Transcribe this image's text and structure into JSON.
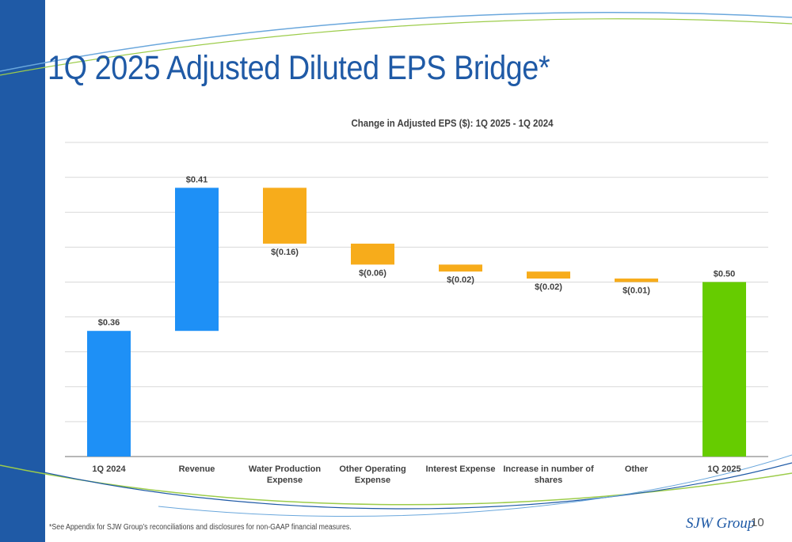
{
  "slide": {
    "title": "1Q 2025 Adjusted Diluted EPS Bridge*",
    "footnote": "*See Appendix for SJW Group’s reconciliations and disclosures for non-GAAP financial measures.",
    "logo_text": "SJW Group",
    "page_number": "10"
  },
  "colors": {
    "sidebar": "#1f5aa6",
    "title": "#1f5aa6",
    "blue_bar": "#1e90f6",
    "orange_bar": "#f7ac1b",
    "green_bar": "#66cc00",
    "grid": "#d9d9d9"
  },
  "chart_data": {
    "type": "bar",
    "subtype": "waterfall",
    "title": "Change in Adjusted EPS ($): 1Q 2025 - 1Q 2024",
    "categories": [
      "1Q 2024",
      "Revenue",
      "Water Production Expense",
      "Other Operating Expense",
      "Interest Expense",
      "Increase in number of shares",
      "Other",
      "1Q 2025"
    ],
    "category_lines": [
      [
        "1Q 2024"
      ],
      [
        "Revenue"
      ],
      [
        "Water Production",
        "Expense"
      ],
      [
        "Other Operating",
        "Expense"
      ],
      [
        "Interest Expense"
      ],
      [
        "Increase in number of",
        "shares"
      ],
      [
        "Other"
      ],
      [
        "1Q 2025"
      ]
    ],
    "values": [
      0.36,
      0.41,
      -0.16,
      -0.06,
      -0.02,
      -0.02,
      -0.01,
      0.5
    ],
    "bar_kinds": [
      "total",
      "increase",
      "decrease",
      "decrease",
      "decrease",
      "decrease",
      "decrease",
      "total"
    ],
    "data_labels": [
      "$0.36",
      "$0.41",
      "$(0.16)",
      "$(0.06)",
      "$(0.02)",
      "$(0.02)",
      "$(0.01)",
      "$0.50"
    ],
    "ylim": [
      0,
      0.9
    ],
    "grid": true,
    "legend": false,
    "xlabel": "",
    "ylabel": ""
  }
}
